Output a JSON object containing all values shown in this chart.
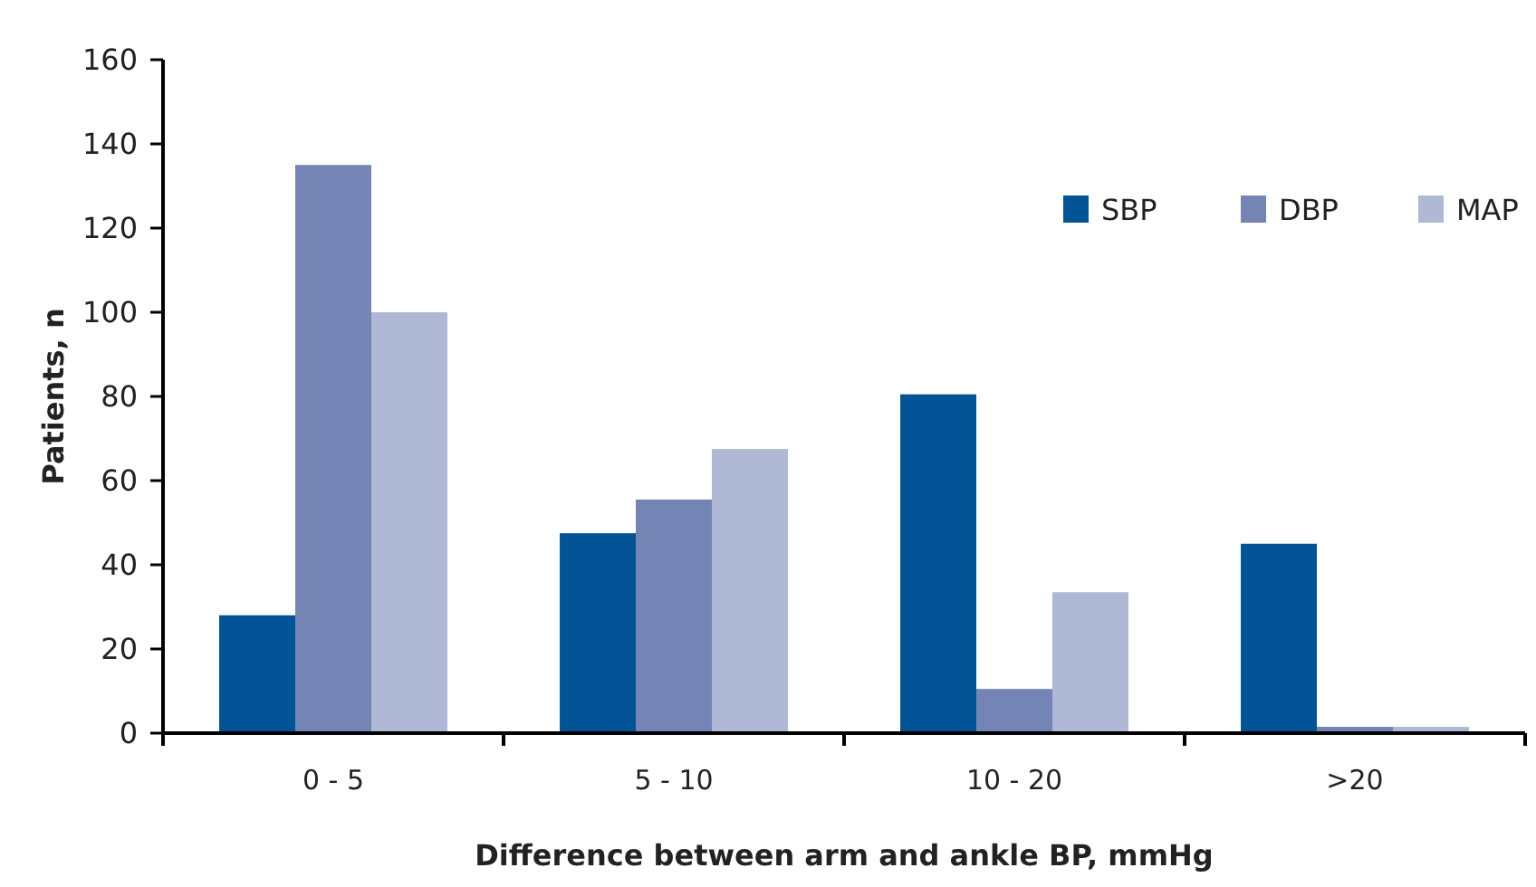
{
  "chart_data": {
    "type": "bar",
    "xlabel": "Difference between arm and ankle BP, mmHg",
    "ylabel": "Patients, n",
    "categories": [
      "0 - 5",
      "5 - 10",
      "10 - 20",
      ">20"
    ],
    "series": [
      {
        "name": "SBP",
        "color": "#025496",
        "values": [
          28,
          47.5,
          80.5,
          45
        ]
      },
      {
        "name": "DBP",
        "color": "#7384b5",
        "values": [
          135,
          55.5,
          10.5,
          1.5
        ]
      },
      {
        "name": "MAP",
        "color": "#afb8d5",
        "values": [
          100,
          67.5,
          33.5,
          1.5
        ]
      }
    ],
    "ylim": [
      0,
      160
    ],
    "yticks": [
      0,
      20,
      40,
      60,
      80,
      100,
      120,
      140,
      160
    ],
    "grid": false,
    "legend": "top right"
  }
}
